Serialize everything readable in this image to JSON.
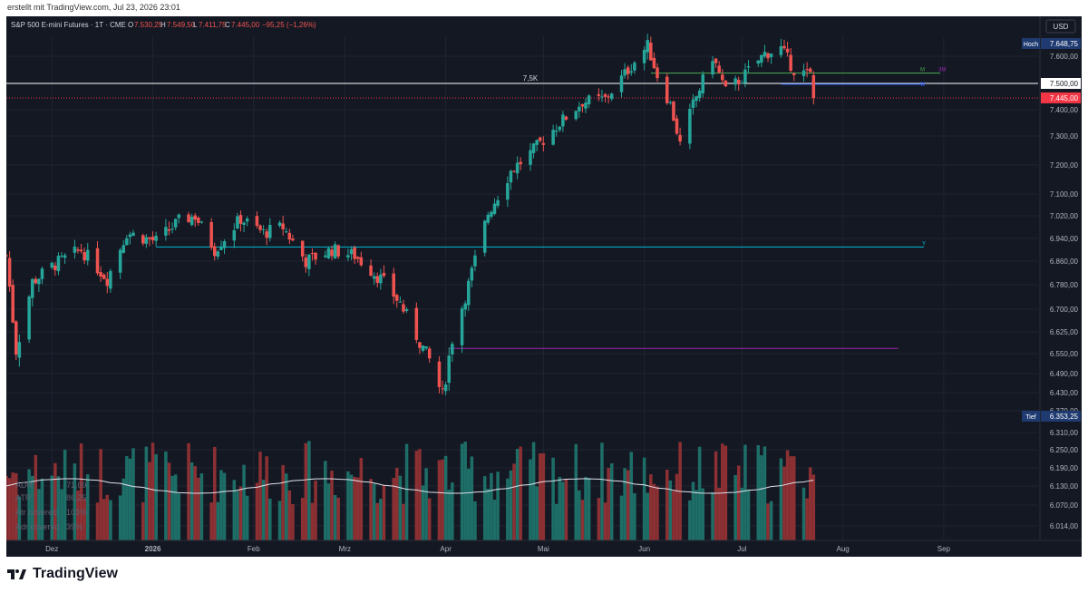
{
  "header": {
    "created_text": "erstellt mit TradingView.com, Jul 23, 2026 23:01"
  },
  "brand": {
    "name": "TradingView"
  },
  "chart_data": {
    "type": "candlestick",
    "title": "S&P 500 E-mini Futures · 1T · CME",
    "ohlc": {
      "o_label": "O",
      "o": "7.530,25",
      "h_label": "H",
      "h": "7.549,50",
      "l_label": "L",
      "l": "7.411,75",
      "c_label": "C",
      "c": "7.445,00",
      "change": "−95,25 (−1,26%)"
    },
    "currency": "USD",
    "y_ticks": [
      {
        "v": 7600,
        "t": "7.600,00"
      },
      {
        "v": 7500,
        "t": "7.500,00"
      },
      {
        "v": 7400,
        "t": "7.400,00"
      },
      {
        "v": 7300,
        "t": "7.300,00"
      },
      {
        "v": 7200,
        "t": "7.200,00"
      },
      {
        "v": 7100,
        "t": "7.100,00"
      },
      {
        "v": 7020,
        "t": "7.020,00"
      },
      {
        "v": 6940,
        "t": "6.940,00"
      },
      {
        "v": 6860,
        "t": "6.860,00"
      },
      {
        "v": 6780,
        "t": "6.780,00"
      },
      {
        "v": 6700,
        "t": "6.700,00"
      },
      {
        "v": 6625,
        "t": "6.625,00"
      },
      {
        "v": 6550,
        "t": "6.550,00"
      },
      {
        "v": 6490,
        "t": "6.490,00"
      },
      {
        "v": 6430,
        "t": "6.430,00"
      },
      {
        "v": 6370,
        "t": "6.370,00"
      },
      {
        "v": 6310,
        "t": "6.310,00"
      },
      {
        "v": 6250,
        "t": "6.250,00"
      },
      {
        "v": 6190,
        "t": "6.190,00"
      },
      {
        "v": 6130,
        "t": "6.130,00"
      },
      {
        "v": 6070,
        "t": "6.070,00"
      },
      {
        "v": 6014,
        "t": "6.014,00"
      }
    ],
    "x_labels": [
      {
        "d": "2025-12-01",
        "t": "Dez"
      },
      {
        "d": "2026-01-01",
        "t": "2026"
      },
      {
        "d": "2026-02-01",
        "t": "Feb"
      },
      {
        "d": "2026-03-01",
        "t": "Mrz"
      },
      {
        "d": "2026-04-01",
        "t": "Apr"
      },
      {
        "d": "2026-05-01",
        "t": "Mai"
      },
      {
        "d": "2026-06-01",
        "t": "Jun"
      },
      {
        "d": "2026-07-01",
        "t": "Jul"
      },
      {
        "d": "2026-08-01",
        "t": "Aug"
      },
      {
        "d": "2026-09-01",
        "t": "Sep"
      }
    ],
    "x_range": [
      "2025-11-17",
      "2026-09-30"
    ],
    "high_marker": {
      "label": "Hoch",
      "value": "7.648,75",
      "v": 7648.75
    },
    "low_marker": {
      "label": "Tief",
      "value": "6.353,25",
      "v": 6353.25
    },
    "last_price": {
      "value": "7.445,00",
      "v": 7445
    },
    "round_level": {
      "label": "7,5K",
      "value": "7.500,00",
      "v": 7500
    },
    "level_y": {
      "label": "Y",
      "v": 6910,
      "from": "2026-01-02"
    },
    "level_m": {
      "label": "M",
      "v": 7538,
      "from": "2026-06-03"
    },
    "level_3m": {
      "label": "3M",
      "v": 7538
    },
    "level_w": {
      "label": "W",
      "v": 7497,
      "from": "2026-07-13"
    },
    "level_violet": {
      "v": 6568,
      "from": "2026-04-02",
      "to": "2026-08-18"
    },
    "atr_panel": {
      "rows": [
        {
          "label": "ADR",
          "value": "71,09"
        },
        {
          "label": "ATR",
          "value": "86,25"
        },
        {
          "label": "Atr covered",
          "value": "103%"
        },
        {
          "label": "Adr covered",
          "value": "39%"
        }
      ]
    },
    "candle_anchors": [
      {
        "d": "2025-11-17",
        "c": 6880
      },
      {
        "d": "2025-11-20",
        "c": 6560
      },
      {
        "d": "2025-11-25",
        "c": 6790
      },
      {
        "d": "2025-12-02",
        "c": 6850
      },
      {
        "d": "2025-12-10",
        "c": 6900
      },
      {
        "d": "2025-12-18",
        "c": 6800
      },
      {
        "d": "2025-12-24",
        "c": 6960
      },
      {
        "d": "2026-01-02",
        "c": 6930
      },
      {
        "d": "2026-01-09",
        "c": 7000
      },
      {
        "d": "2026-01-14",
        "c": 7020
      },
      {
        "d": "2026-01-20",
        "c": 6900
      },
      {
        "d": "2026-01-28",
        "c": 7010
      },
      {
        "d": "2026-02-04",
        "c": 6960
      },
      {
        "d": "2026-02-10",
        "c": 6980
      },
      {
        "d": "2026-02-17",
        "c": 6860
      },
      {
        "d": "2026-02-25",
        "c": 6900
      },
      {
        "d": "2026-03-04",
        "c": 6880
      },
      {
        "d": "2026-03-12",
        "c": 6800
      },
      {
        "d": "2026-03-18",
        "c": 6720
      },
      {
        "d": "2026-03-23",
        "c": 6610
      },
      {
        "d": "2026-03-27",
        "c": 6530
      },
      {
        "d": "2026-03-31",
        "c": 6420
      },
      {
        "d": "2026-04-03",
        "c": 6600
      },
      {
        "d": "2026-04-08",
        "c": 6780
      },
      {
        "d": "2026-04-14",
        "c": 7030
      },
      {
        "d": "2026-04-21",
        "c": 7180
      },
      {
        "d": "2026-04-28",
        "c": 7250
      },
      {
        "d": "2026-05-06",
        "c": 7350
      },
      {
        "d": "2026-05-13",
        "c": 7430
      },
      {
        "d": "2026-05-20",
        "c": 7440
      },
      {
        "d": "2026-05-27",
        "c": 7550
      },
      {
        "d": "2026-06-02",
        "c": 7640
      },
      {
        "d": "2026-06-05",
        "c": 7530
      },
      {
        "d": "2026-06-09",
        "c": 7420
      },
      {
        "d": "2026-06-12",
        "c": 7270
      },
      {
        "d": "2026-06-16",
        "c": 7420
      },
      {
        "d": "2026-06-22",
        "c": 7600
      },
      {
        "d": "2026-06-26",
        "c": 7470
      },
      {
        "d": "2026-07-01",
        "c": 7520
      },
      {
        "d": "2026-07-08",
        "c": 7610
      },
      {
        "d": "2026-07-13",
        "c": 7630
      },
      {
        "d": "2026-07-17",
        "c": 7550
      },
      {
        "d": "2026-07-22",
        "c": 7530
      },
      {
        "d": "2026-07-23",
        "c": 7445
      }
    ],
    "volume_avg_label": "Volume"
  },
  "colors": {
    "background": "#141823",
    "grid": "#1f2431",
    "up": "#26a69a",
    "down": "#ef5350",
    "up_vol": "#1e6e68",
    "down_vol": "#8c3033",
    "text": "#b2b5be",
    "last": "#f23645",
    "high": "#1e3a70",
    "level": "#ffffff",
    "violet": "#9c27b0",
    "cyan": "#00bcd4",
    "green": "#4caf50"
  }
}
